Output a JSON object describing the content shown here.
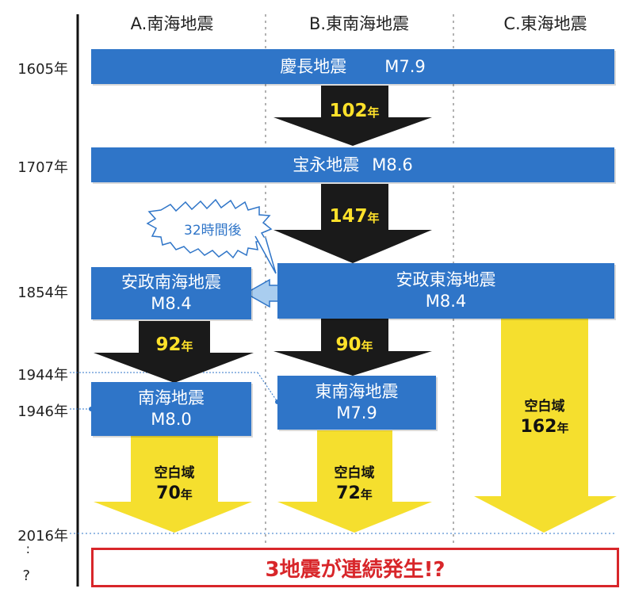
{
  "columns": [
    "A.南海地震",
    "B.東南海地震",
    "C.東海地震"
  ],
  "years": [
    "1605年",
    "1707年",
    "1854年",
    "1944年",
    "1946年",
    "2016年"
  ],
  "ellipsis": ":",
  "question": "?",
  "events": {
    "keicho": {
      "name": "慶長地震",
      "mag": "M7.9"
    },
    "hoei": {
      "name": "宝永地震",
      "mag": "M8.6"
    },
    "ansei_nankai": {
      "name": "安政南海地震",
      "mag": "M8.4"
    },
    "ansei_tokai": {
      "name": "安政東海地震",
      "mag": "M8.4"
    },
    "nankai": {
      "name": "南海地震",
      "mag": "M8.0"
    },
    "tonankai": {
      "name": "東南海地震",
      "mag": "M7.9"
    }
  },
  "intervals": {
    "i102": {
      "num": "102",
      "unit": "年"
    },
    "i147": {
      "num": "147",
      "unit": "年"
    },
    "i92": {
      "num": "92",
      "unit": "年"
    },
    "i90": {
      "num": "90",
      "unit": "年"
    }
  },
  "burst": "32時間後",
  "gaps": {
    "label": "空白域",
    "g70": {
      "num": "70",
      "unit": "年"
    },
    "g72": {
      "num": "72",
      "unit": "年"
    },
    "g162": {
      "num": "162",
      "unit": "年"
    }
  },
  "conclusion": "3地震が連続発生!?",
  "colors": {
    "box": "#2f75c8",
    "dark_arrow": "#1a1a1a",
    "yellow_arrow": "#f5df2e",
    "highlight": "#ffe12a",
    "alert": "#d8262a"
  }
}
